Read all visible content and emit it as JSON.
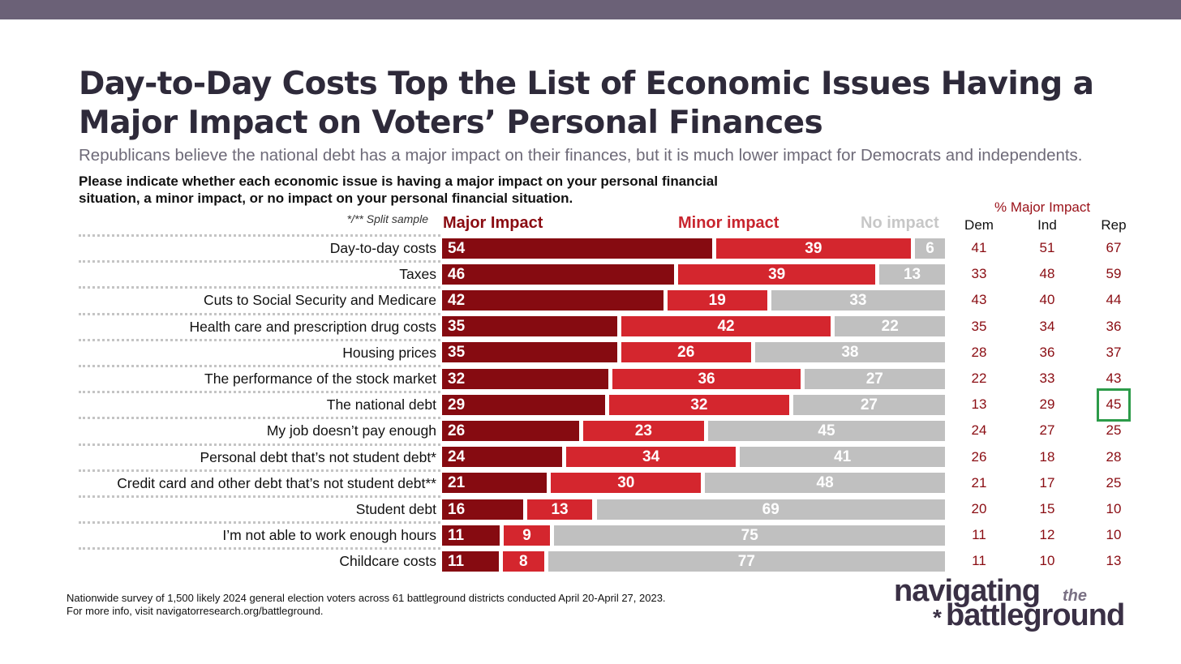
{
  "header": {
    "title": "Day-to-Day Costs Top the List of Economic Issues Having a Major Impact on Voters’ Personal Finances",
    "subtitle": "Republicans believe the national debt has a major impact on their finances, but it is much lower impact for Democrats and independents.",
    "question": "Please indicate whether each economic issue is having a major impact on your personal financial situation, a minor impact, or no impact on your personal financial situation.",
    "split_note": "*/** Split sample"
  },
  "legend": {
    "major": "Major Impact",
    "minor": "Minor impact",
    "none": "No impact"
  },
  "party_table": {
    "title": "% Major Impact",
    "columns": [
      "Dem",
      "Ind",
      "Rep"
    ]
  },
  "chart_data": {
    "type": "bar",
    "orientation": "horizontal",
    "stacked": true,
    "categories": [
      "Day-to-day costs",
      "Taxes",
      "Cuts to Social Security and Medicare",
      "Health care and prescription drug costs",
      "Housing prices",
      "The performance of the stock market",
      "The national debt",
      "My job doesn’t pay enough",
      "Personal debt that’s not student debt*",
      "Credit card and other debt that’s not student debt**",
      "Student debt",
      "I’m not able to work enough hours",
      "Childcare costs"
    ],
    "series": [
      {
        "name": "Major Impact",
        "color": "#860b11",
        "values": [
          54,
          46,
          42,
          35,
          35,
          32,
          29,
          26,
          24,
          21,
          16,
          11,
          11
        ]
      },
      {
        "name": "Minor impact",
        "color": "#d4262e",
        "values": [
          39,
          39,
          19,
          42,
          26,
          36,
          32,
          23,
          34,
          30,
          13,
          9,
          8
        ]
      },
      {
        "name": "No impact",
        "color": "#c0c0c0",
        "values": [
          6,
          13,
          33,
          22,
          38,
          27,
          27,
          45,
          41,
          48,
          69,
          75,
          77
        ]
      }
    ],
    "party_major_impact": {
      "Dem": [
        41,
        33,
        43,
        35,
        28,
        22,
        13,
        24,
        26,
        21,
        20,
        11,
        11
      ],
      "Ind": [
        51,
        48,
        40,
        34,
        36,
        33,
        29,
        27,
        18,
        17,
        15,
        12,
        10
      ],
      "Rep": [
        67,
        59,
        44,
        36,
        37,
        43,
        45,
        25,
        28,
        25,
        10,
        10,
        13
      ]
    },
    "highlight": {
      "category": "The national debt",
      "column": "Rep",
      "color": "#2c9b49"
    },
    "data_labels": true
  },
  "footer": {
    "line1": "Nationwide survey of 1,500 likely 2024 general election voters across 61 battleground districts conducted April 20-April 27, 2023.",
    "line2": "For more info, visit navigatorresearch.org/battleground."
  },
  "logo": {
    "word1": "navigating",
    "word2": "the",
    "star": "*",
    "word3": "battleground"
  }
}
